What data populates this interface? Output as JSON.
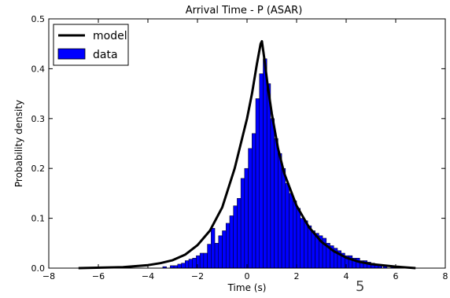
{
  "page_number": "5",
  "chart_data": {
    "type": "bar",
    "title": "Arrival Time - P (ASAR)",
    "xlabel": "Time (s)",
    "ylabel": "Probability density",
    "xlim": [
      -8,
      8
    ],
    "ylim": [
      0,
      0.5
    ],
    "xticks": [
      -8,
      -6,
      -4,
      -2,
      0,
      2,
      4,
      6,
      8
    ],
    "xtick_labels": [
      "−8",
      "−6",
      "−4",
      "−2",
      "0",
      "2",
      "4",
      "6",
      "8"
    ],
    "yticks": [
      0.0,
      0.1,
      0.2,
      0.3,
      0.4,
      0.5
    ],
    "ytick_labels": [
      "0.0",
      "0.1",
      "0.2",
      "0.3",
      "0.4",
      "0.5"
    ],
    "legend_position": "top-left",
    "grid": false,
    "series": [
      {
        "name": "data",
        "kind": "histogram",
        "color": "#0000ff",
        "bin_width": 0.15,
        "bins": [
          [
            -3.4,
            0.003
          ],
          [
            -3.1,
            0.005
          ],
          [
            -2.95,
            0.005
          ],
          [
            -2.8,
            0.008
          ],
          [
            -2.65,
            0.01
          ],
          [
            -2.5,
            0.015
          ],
          [
            -2.35,
            0.018
          ],
          [
            -2.2,
            0.02
          ],
          [
            -2.05,
            0.025
          ],
          [
            -1.9,
            0.03
          ],
          [
            -1.75,
            0.03
          ],
          [
            -1.6,
            0.048
          ],
          [
            -1.45,
            0.08
          ],
          [
            -1.3,
            0.05
          ],
          [
            -1.15,
            0.065
          ],
          [
            -1.0,
            0.075
          ],
          [
            -0.85,
            0.09
          ],
          [
            -0.7,
            0.105
          ],
          [
            -0.55,
            0.125
          ],
          [
            -0.4,
            0.14
          ],
          [
            -0.25,
            0.18
          ],
          [
            -0.1,
            0.2
          ],
          [
            0.05,
            0.24
          ],
          [
            0.2,
            0.27
          ],
          [
            0.35,
            0.34
          ],
          [
            0.5,
            0.39
          ],
          [
            0.65,
            0.42
          ],
          [
            0.8,
            0.37
          ],
          [
            0.95,
            0.3
          ],
          [
            1.1,
            0.26
          ],
          [
            1.25,
            0.23
          ],
          [
            1.4,
            0.2
          ],
          [
            1.55,
            0.17
          ],
          [
            1.7,
            0.15
          ],
          [
            1.85,
            0.135
          ],
          [
            2.0,
            0.12
          ],
          [
            2.15,
            0.1
          ],
          [
            2.3,
            0.095
          ],
          [
            2.45,
            0.085
          ],
          [
            2.6,
            0.075
          ],
          [
            2.75,
            0.07
          ],
          [
            2.9,
            0.065
          ],
          [
            3.05,
            0.06
          ],
          [
            3.2,
            0.05
          ],
          [
            3.35,
            0.045
          ],
          [
            3.5,
            0.04
          ],
          [
            3.65,
            0.035
          ],
          [
            3.8,
            0.03
          ],
          [
            3.95,
            0.025
          ],
          [
            4.1,
            0.025
          ],
          [
            4.25,
            0.02
          ],
          [
            4.4,
            0.02
          ],
          [
            4.55,
            0.015
          ],
          [
            4.7,
            0.015
          ],
          [
            4.85,
            0.012
          ],
          [
            5.0,
            0.01
          ],
          [
            5.15,
            0.008
          ],
          [
            5.3,
            0.006
          ],
          [
            5.5,
            0.005
          ],
          [
            5.8,
            0.003
          ]
        ]
      },
      {
        "name": "model",
        "kind": "line",
        "color": "#000000",
        "points": [
          [
            -6.8,
            0.0
          ],
          [
            -5.0,
            0.002
          ],
          [
            -4.0,
            0.006
          ],
          [
            -3.5,
            0.01
          ],
          [
            -3.0,
            0.016
          ],
          [
            -2.5,
            0.027
          ],
          [
            -2.0,
            0.046
          ],
          [
            -1.5,
            0.075
          ],
          [
            -1.0,
            0.122
          ],
          [
            -0.5,
            0.2
          ],
          [
            -0.2,
            0.26
          ],
          [
            0.0,
            0.3
          ],
          [
            0.2,
            0.35
          ],
          [
            0.4,
            0.41
          ],
          [
            0.55,
            0.45
          ],
          [
            0.6,
            0.455
          ],
          [
            0.7,
            0.42
          ],
          [
            0.85,
            0.36
          ],
          [
            1.0,
            0.31
          ],
          [
            1.25,
            0.24
          ],
          [
            1.5,
            0.19
          ],
          [
            2.0,
            0.125
          ],
          [
            2.5,
            0.082
          ],
          [
            3.0,
            0.053
          ],
          [
            3.5,
            0.034
          ],
          [
            4.0,
            0.021
          ],
          [
            4.5,
            0.013
          ],
          [
            5.0,
            0.008
          ],
          [
            6.0,
            0.003
          ],
          [
            6.8,
            0.0
          ]
        ]
      }
    ]
  }
}
